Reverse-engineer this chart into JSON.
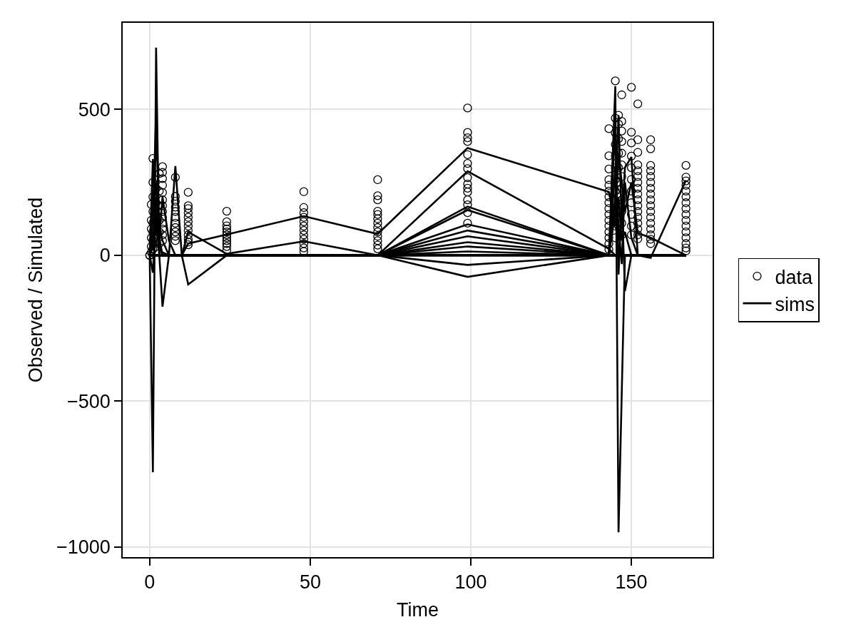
{
  "chart_data": {
    "type": "line",
    "xlabel": "Time",
    "ylabel": "Observed / Simulated",
    "xlim": [
      -8.4,
      175.3
    ],
    "ylim": [
      -1035,
      797
    ],
    "xticks": [
      0,
      50,
      100,
      150
    ],
    "yticks": [
      {
        "value": -1000,
        "label": "−1000"
      },
      {
        "value": -500,
        "label": "−500"
      },
      0,
      500
    ],
    "grid": true,
    "legend": "right",
    "series": [
      {
        "name": "data",
        "type": "scatter",
        "marker": "circle",
        "color": "#000000",
        "x": [
          0,
          0,
          0.5,
          0.5,
          0.5,
          0.5,
          0.5,
          0.5,
          1,
          1,
          1,
          1,
          1,
          1,
          1,
          1,
          2,
          2,
          2,
          2,
          3,
          3,
          3,
          3,
          3,
          3,
          4,
          4,
          4,
          4,
          4,
          4,
          4,
          4,
          4,
          4,
          4,
          4,
          4,
          8,
          8,
          8,
          8,
          8,
          8,
          8,
          8,
          8,
          8,
          8,
          12,
          12,
          12,
          12,
          12,
          12,
          12,
          12,
          12,
          12,
          12,
          12,
          24,
          24,
          24,
          24,
          24,
          24,
          24,
          24,
          24,
          24,
          24,
          48,
          48,
          48,
          48,
          48,
          48,
          48,
          48,
          48,
          48,
          48,
          48,
          71,
          71,
          71,
          71,
          71,
          71,
          71,
          71,
          71,
          71,
          71,
          71,
          71,
          99,
          99,
          99,
          99,
          99,
          99,
          99,
          99,
          99,
          99,
          99,
          99,
          99,
          99,
          99,
          143,
          143,
          143,
          143,
          143,
          143,
          143,
          143,
          143,
          143,
          143,
          143,
          143,
          143,
          143,
          143,
          145,
          145,
          145,
          145,
          145,
          145,
          145,
          145,
          145,
          145,
          145,
          146,
          146,
          146,
          146,
          146,
          146,
          146,
          146,
          147,
          147,
          147,
          147,
          147,
          147,
          147,
          147,
          147,
          147,
          147,
          147,
          150,
          150,
          150,
          150,
          150,
          150,
          150,
          150,
          150,
          150,
          150,
          152,
          152,
          152,
          152,
          152,
          152,
          152,
          152,
          152,
          152,
          152,
          152,
          152,
          152,
          152,
          152,
          152,
          156,
          156,
          156,
          156,
          156,
          156,
          156,
          156,
          156,
          156,
          156,
          156,
          156,
          156,
          156,
          156,
          156,
          167,
          167,
          167,
          167,
          167,
          167,
          167,
          167,
          167,
          167,
          167,
          167,
          167,
          167,
          167,
          167
        ],
        "values": [
          0,
          0,
          174,
          120,
          90,
          60,
          30,
          10,
          332,
          250,
          200,
          150,
          110,
          80,
          50,
          20,
          230,
          180,
          140,
          30,
          280,
          220,
          170,
          120,
          80,
          40,
          304,
          284,
          263,
          240,
          215,
          190,
          170,
          150,
          130,
          110,
          90,
          70,
          50,
          267,
          202,
          185,
          165,
          150,
          130,
          110,
          95,
          80,
          65,
          50,
          216,
          170,
          160,
          145,
          130,
          115,
          100,
          85,
          70,
          55,
          45,
          36,
          151,
          115,
          101,
          90,
          80,
          70,
          60,
          50,
          40,
          30,
          17,
          218,
          164,
          146,
          130,
          115,
          100,
          85,
          70,
          55,
          40,
          25,
          13,
          259,
          204,
          190,
          151,
          140,
          125,
          110,
          95,
          80,
          65,
          50,
          35,
          22,
          505,
          421,
          403,
          390,
          345,
          315,
          297,
          266,
          244,
          230,
          217,
          190,
          173,
          146,
          110,
          434,
          341,
          296,
          259,
          240,
          220,
          200,
          180,
          160,
          140,
          120,
          100,
          80,
          60,
          40,
          20,
          598,
          470,
          420,
          380,
          340,
          300,
          260,
          220,
          140,
          100,
          60,
          480,
          450,
          400,
          350,
          300,
          250,
          200,
          100,
          550,
          459,
          426,
          390,
          350,
          310,
          270,
          230,
          190,
          150,
          110,
          70,
          576,
          422,
          385,
          340,
          300,
          260,
          220,
          180,
          140,
          100,
          70,
          519,
          396,
          353,
          310,
          290,
          270,
          250,
          230,
          210,
          190,
          170,
          150,
          130,
          110,
          90,
          70,
          56,
          396,
          365,
          308,
          290,
          270,
          250,
          230,
          210,
          190,
          170,
          150,
          130,
          110,
          90,
          70,
          55,
          40,
          308,
          268,
          255,
          240,
          220,
          200,
          180,
          160,
          140,
          120,
          100,
          80,
          60,
          40,
          25,
          15
        ]
      },
      {
        "name": "sims",
        "color": "#000000",
        "x": [
          0,
          1,
          2,
          3,
          4,
          6,
          8,
          10,
          12,
          24,
          48,
          71,
          99,
          143,
          145,
          146,
          147,
          148,
          150,
          152,
          156,
          167,
          null,
          0,
          1,
          2,
          3,
          4,
          6,
          8,
          10,
          12,
          24,
          48,
          71,
          99,
          143,
          145,
          146,
          147,
          148,
          150,
          152,
          156,
          167,
          null,
          0,
          1,
          2,
          3,
          4,
          6,
          8,
          10,
          12,
          24,
          48,
          71,
          99,
          143,
          145,
          146,
          147,
          148,
          150,
          152,
          156,
          167,
          null,
          0,
          1,
          2,
          3,
          4,
          6,
          8,
          10,
          12,
          24,
          48,
          71,
          99,
          143,
          145,
          146,
          147,
          148,
          150,
          152,
          156,
          167,
          null,
          0,
          1,
          2,
          3,
          4,
          6,
          8,
          10,
          12,
          24,
          48,
          71,
          99,
          143,
          145,
          146,
          147,
          148,
          150,
          152,
          156,
          167,
          null,
          0,
          1,
          2,
          3,
          4,
          6,
          8,
          10,
          12,
          24,
          48,
          71,
          99,
          143,
          145,
          146,
          147,
          148,
          150,
          152,
          156,
          167,
          null,
          0,
          1,
          2,
          3,
          4,
          6,
          8,
          10,
          12,
          24,
          48,
          71,
          99,
          143,
          145,
          146,
          147,
          148,
          150,
          152,
          156,
          167,
          null,
          0,
          1,
          2,
          3,
          4,
          6,
          8,
          10,
          12,
          24,
          48,
          71,
          99,
          143,
          145,
          146,
          147,
          148,
          150,
          152,
          156,
          167,
          null,
          0,
          1,
          2,
          3,
          4,
          6,
          8,
          10,
          12,
          24,
          48,
          71,
          99,
          143,
          145,
          146,
          147,
          148,
          150,
          152,
          156,
          167,
          null,
          0,
          1,
          2,
          3,
          4,
          6,
          8,
          10,
          12,
          24,
          48,
          71,
          99,
          143,
          145,
          146,
          147,
          148,
          150,
          152,
          156,
          167,
          null,
          0,
          1,
          2,
          3,
          4,
          6,
          8,
          10,
          12,
          24,
          48,
          71,
          99,
          143,
          145,
          146,
          147,
          148,
          150,
          152,
          156,
          167,
          null,
          0,
          1,
          2,
          3,
          4,
          6,
          8,
          10,
          12,
          24,
          48,
          71,
          99,
          143,
          145,
          146,
          147,
          148,
          150,
          152,
          156,
          167,
          null,
          0,
          1,
          2,
          3,
          4,
          6,
          8,
          10,
          12,
          24,
          48,
          71,
          99,
          143,
          145,
          146,
          147,
          148,
          150,
          152,
          156,
          167,
          null,
          0,
          1,
          2,
          3,
          4,
          6,
          8,
          10,
          12,
          24,
          48,
          71,
          99,
          143,
          145,
          146,
          147,
          148,
          150,
          152,
          156,
          167,
          null,
          0,
          1,
          2,
          3,
          4,
          6,
          8,
          10,
          12,
          24,
          48,
          71,
          99,
          143,
          145,
          146,
          147,
          148,
          150,
          152,
          156,
          167,
          null,
          0,
          1,
          2,
          3,
          4,
          6,
          8,
          10,
          12,
          24,
          48,
          71,
          99,
          143,
          145,
          146,
          147,
          148,
          150,
          152,
          156,
          167,
          null,
          0,
          1,
          2,
          3,
          4,
          6,
          8,
          10,
          12,
          24,
          48,
          71,
          99,
          143,
          145,
          146,
          147,
          148,
          150,
          152,
          156,
          167
        ],
        "values": [
          0,
          -744,
          712,
          0,
          0,
          0,
          0,
          0,
          0,
          0,
          0,
          0,
          0,
          0,
          580,
          -950,
          -475,
          0,
          0,
          0,
          0,
          0,
          null,
          0,
          120,
          489,
          60,
          0,
          0,
          0,
          0,
          0,
          0,
          0,
          0,
          0,
          0,
          450,
          -66,
          200,
          -123,
          0,
          0,
          0,
          0,
          null,
          0,
          50,
          200,
          100,
          50,
          0,
          306,
          0,
          0,
          0,
          0,
          0,
          0,
          0,
          300,
          100,
          -30,
          250,
          60,
          0,
          0,
          0,
          null,
          0,
          -60,
          150,
          0,
          -176,
          0,
          0,
          0,
          0,
          0,
          0,
          0,
          0,
          0,
          200,
          480,
          100,
          300,
          337,
          0,
          -9,
          257,
          null,
          0,
          30,
          100,
          40,
          0,
          0,
          0,
          0,
          -100,
          0,
          0,
          0,
          0,
          0,
          150,
          350,
          250,
          150,
          250,
          76,
          60,
          0,
          null,
          0,
          330,
          80,
          30,
          0,
          0,
          0,
          0,
          40,
          71,
          134,
          73,
          368,
          217,
          100,
          200,
          50,
          80,
          0,
          0,
          0,
          0,
          null,
          0,
          200,
          250,
          60,
          200,
          50,
          0,
          0,
          80,
          5,
          48,
          0,
          288,
          22,
          0,
          0,
          0,
          0,
          0,
          0,
          0,
          0,
          null,
          0,
          80,
          40,
          20,
          10,
          0,
          0,
          0,
          0,
          0,
          0,
          0,
          167,
          0,
          0,
          0,
          0,
          0,
          0,
          0,
          0,
          0,
          null,
          0,
          0,
          0,
          0,
          0,
          0,
          0,
          0,
          0,
          0,
          0,
          0,
          155,
          0,
          0,
          0,
          0,
          0,
          0,
          0,
          0,
          0,
          null,
          0,
          0,
          0,
          0,
          0,
          0,
          0,
          0,
          0,
          0,
          0,
          0,
          106,
          0,
          0,
          0,
          0,
          0,
          0,
          0,
          0,
          0,
          null,
          0,
          0,
          0,
          0,
          0,
          0,
          0,
          0,
          0,
          0,
          0,
          0,
          85,
          0,
          0,
          0,
          0,
          0,
          0,
          0,
          0,
          0,
          null,
          0,
          0,
          0,
          0,
          0,
          0,
          0,
          0,
          0,
          0,
          0,
          0,
          65,
          0,
          0,
          0,
          0,
          0,
          0,
          0,
          0,
          0,
          null,
          0,
          0,
          0,
          0,
          0,
          0,
          0,
          0,
          0,
          0,
          0,
          0,
          45,
          0,
          0,
          0,
          0,
          0,
          0,
          0,
          0,
          0,
          null,
          0,
          0,
          0,
          0,
          0,
          0,
          0,
          0,
          0,
          0,
          0,
          0,
          30,
          0,
          0,
          0,
          0,
          0,
          0,
          0,
          0,
          0,
          null,
          0,
          0,
          0,
          0,
          0,
          0,
          0,
          0,
          0,
          0,
          0,
          0,
          13,
          0,
          0,
          0,
          0,
          0,
          0,
          0,
          0,
          0,
          null,
          0,
          0,
          0,
          0,
          0,
          0,
          0,
          0,
          0,
          0,
          0,
          0,
          -33,
          0,
          0,
          0,
          0,
          0,
          0,
          0,
          0,
          0,
          null,
          0,
          0,
          0,
          0,
          0,
          0,
          0,
          0,
          0,
          0,
          0,
          0,
          -74,
          0,
          0,
          0,
          0,
          0,
          0,
          0,
          0,
          0
        ]
      }
    ]
  }
}
